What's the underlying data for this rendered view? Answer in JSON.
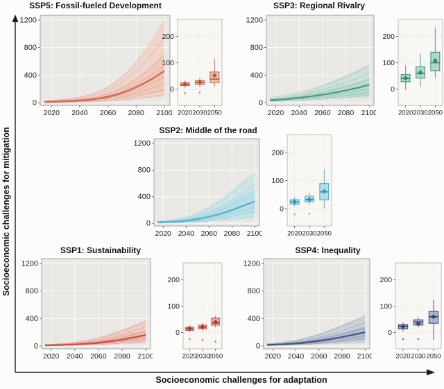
{
  "figure": {
    "y_axis_label": "Socioeconomic challenges for mitigation",
    "x_axis_label": "Socioeconomic challenges for adaptation"
  },
  "chart_data": [
    {
      "panel": "SSP5",
      "title": "SSP5: Fossil-fueled Development",
      "colors": {
        "stroke": "#cb6a56",
        "fill": "#f2bdab",
        "dark": "#ad4c3b"
      },
      "line": {
        "type": "line",
        "x": [
          2015,
          2030,
          2045,
          2060,
          2075,
          2090,
          2100
        ],
        "median": [
          10,
          20,
          40,
          85,
          180,
          330,
          460
        ],
        "outer_upper": [
          20,
          50,
          110,
          240,
          480,
          850,
          1200
        ],
        "outer_lower": [
          5,
          10,
          17,
          28,
          45,
          65,
          80
        ],
        "inner_upper": [
          14,
          30,
          65,
          145,
          290,
          510,
          700
        ],
        "inner_lower": [
          8,
          14,
          25,
          45,
          80,
          125,
          155
        ],
        "members": [
          1200,
          950,
          700,
          540,
          380,
          280,
          190,
          120
        ],
        "xticks": [
          2020,
          2040,
          2060,
          2080,
          2100
        ],
        "yticks": [
          0,
          400,
          800,
          1200
        ],
        "xlim": [
          2012,
          2104
        ],
        "ylim": [
          -40,
          1270
        ]
      },
      "box": {
        "type": "box",
        "categories": [
          "2020",
          "2030",
          "2050"
        ],
        "yticks": [
          0,
          100,
          200
        ],
        "ylim": [
          -62,
          265
        ],
        "boxes": [
          {
            "low": 5,
            "q1": 13,
            "median": 18,
            "q3": 25,
            "high": 32,
            "mean": 19,
            "outliers": [
              -15
            ]
          },
          {
            "low": 8,
            "q1": 18,
            "median": 25,
            "q3": 33,
            "high": 42,
            "mean": 27,
            "outliers": [
              -13
            ]
          },
          {
            "low": 10,
            "q1": 25,
            "median": 38,
            "q3": 65,
            "high": 115,
            "mean": 52,
            "outliers": []
          }
        ]
      }
    },
    {
      "panel": "SSP3",
      "title": "SSP3: Regional Rivalry",
      "colors": {
        "stroke": "#4e9c8b",
        "fill": "#a9d5c9",
        "dark": "#33796a"
      },
      "line": {
        "type": "line",
        "x": [
          2015,
          2030,
          2045,
          2060,
          2075,
          2090,
          2100
        ],
        "median": [
          35,
          55,
          80,
          115,
          160,
          215,
          260
        ],
        "outer_upper": [
          48,
          95,
          165,
          255,
          365,
          475,
          545
        ],
        "outer_lower": [
          25,
          33,
          42,
          52,
          60,
          68,
          72
        ],
        "inner_upper": [
          42,
          70,
          110,
          165,
          230,
          300,
          350
        ],
        "inner_lower": [
          28,
          40,
          55,
          70,
          85,
          100,
          110
        ],
        "members": [
          545,
          430,
          340,
          260,
          200,
          150,
          110
        ],
        "xticks": [
          2020,
          2040,
          2060,
          2080,
          2100
        ],
        "yticks": [
          0,
          400,
          800,
          1200
        ],
        "xlim": [
          2012,
          2104
        ],
        "ylim": [
          -40,
          1270
        ]
      },
      "box": {
        "type": "box",
        "categories": [
          "2020",
          "2030",
          "2050"
        ],
        "yticks": [
          0,
          100,
          200
        ],
        "ylim": [
          -62,
          265
        ],
        "boxes": [
          {
            "low": -2,
            "q1": 28,
            "median": 40,
            "q3": 55,
            "high": 90,
            "mean": 42,
            "outliers": []
          },
          {
            "low": 10,
            "q1": 42,
            "median": 60,
            "q3": 85,
            "high": 135,
            "mean": 63,
            "outliers": []
          },
          {
            "low": 42,
            "q1": 70,
            "median": 100,
            "q3": 140,
            "high": 235,
            "mean": 108,
            "outliers": []
          }
        ]
      }
    },
    {
      "panel": "SSP2",
      "title": "SSP2: Middle of the road",
      "colors": {
        "stroke": "#58b2c7",
        "fill": "#abdbe7",
        "dark": "#3d8ba0"
      },
      "line": {
        "type": "line",
        "x": [
          2015,
          2030,
          2045,
          2060,
          2075,
          2090,
          2100
        ],
        "median": [
          15,
          25,
          50,
          100,
          170,
          265,
          330
        ],
        "outer_upper": [
          25,
          60,
          130,
          260,
          440,
          640,
          750
        ],
        "outer_lower": [
          6,
          10,
          17,
          28,
          44,
          60,
          68
        ],
        "inner_upper": [
          20,
          42,
          85,
          170,
          290,
          430,
          510
        ],
        "inner_lower": [
          10,
          16,
          28,
          50,
          85,
          130,
          155
        ],
        "members": [
          750,
          580,
          450,
          330,
          250,
          170,
          110
        ],
        "xticks": [
          2020,
          2040,
          2060,
          2080,
          2100
        ],
        "yticks": [
          0,
          400,
          800,
          1200
        ],
        "xlim": [
          2012,
          2104
        ],
        "ylim": [
          -40,
          1270
        ]
      },
      "box": {
        "type": "box",
        "categories": [
          "2020",
          "2030",
          "2050"
        ],
        "yticks": [
          0,
          100,
          200
        ],
        "ylim": [
          -62,
          265
        ],
        "boxes": [
          {
            "low": 8,
            "q1": 16,
            "median": 24,
            "q3": 32,
            "high": 42,
            "mean": 24,
            "outliers": [
              -20
            ]
          },
          {
            "low": 14,
            "q1": 25,
            "median": 33,
            "q3": 45,
            "high": 58,
            "mean": 33,
            "outliers": [
              -18
            ]
          },
          {
            "low": 2,
            "q1": 32,
            "median": 60,
            "q3": 90,
            "high": 140,
            "mean": 62,
            "outliers": []
          }
        ]
      }
    },
    {
      "panel": "SSP1",
      "title": "SSP1: Sustainability",
      "colors": {
        "stroke": "#c4544a",
        "fill": "#efaba0",
        "dark": "#a03a31"
      },
      "line": {
        "type": "line",
        "x": [
          2015,
          2030,
          2045,
          2060,
          2075,
          2090,
          2100
        ],
        "median": [
          10,
          16,
          28,
          48,
          80,
          125,
          160
        ],
        "outer_upper": [
          18,
          38,
          72,
          130,
          210,
          300,
          370
        ],
        "outer_lower": [
          5,
          8,
          12,
          17,
          25,
          33,
          40
        ],
        "inner_upper": [
          14,
          25,
          45,
          80,
          130,
          190,
          230
        ],
        "inner_lower": [
          7,
          11,
          18,
          30,
          48,
          70,
          85
        ],
        "members": [
          370,
          280,
          215,
          160,
          115,
          75
        ],
        "xticks": [
          2020,
          2040,
          2060,
          2080,
          2100
        ],
        "yticks": [
          0,
          400,
          800,
          1200
        ],
        "xlim": [
          2012,
          2104
        ],
        "ylim": [
          -40,
          1270
        ]
      },
      "box": {
        "type": "box",
        "categories": [
          "2020",
          "2030",
          "2050"
        ],
        "yticks": [
          0,
          100,
          200
        ],
        "ylim": [
          -62,
          265
        ],
        "boxes": [
          {
            "low": 2,
            "q1": 8,
            "median": 14,
            "q3": 20,
            "high": 27,
            "mean": 15,
            "outliers": [
              -25
            ]
          },
          {
            "low": 6,
            "q1": 14,
            "median": 20,
            "q3": 28,
            "high": 36,
            "mean": 21,
            "outliers": [
              -28
            ]
          },
          {
            "low": 20,
            "q1": 28,
            "median": 36,
            "q3": 55,
            "high": 63,
            "mean": 40,
            "outliers": [
              -35
            ]
          }
        ]
      }
    },
    {
      "panel": "SSP4",
      "title": "SSP4: Inequality",
      "colors": {
        "stroke": "#49577e",
        "fill": "#a3b0cd",
        "dark": "#303e62"
      },
      "line": {
        "type": "line",
        "x": [
          2015,
          2030,
          2045,
          2060,
          2075,
          2090,
          2100
        ],
        "median": [
          15,
          27,
          45,
          75,
          115,
          165,
          200
        ],
        "outer_upper": [
          25,
          55,
          105,
          180,
          275,
          375,
          440
        ],
        "outer_lower": [
          7,
          11,
          17,
          24,
          31,
          37,
          42
        ],
        "inner_upper": [
          20,
          40,
          70,
          115,
          175,
          240,
          285
        ],
        "inner_lower": [
          10,
          16,
          26,
          40,
          60,
          82,
          100
        ],
        "members": [
          440,
          340,
          260,
          200,
          150,
          100
        ],
        "xticks": [
          2020,
          2040,
          2060,
          2080,
          2100
        ],
        "yticks": [
          0,
          400,
          800,
          1200
        ],
        "xlim": [
          2012,
          2104
        ],
        "ylim": [
          -40,
          1270
        ]
      },
      "box": {
        "type": "box",
        "categories": [
          "2020",
          "2030",
          "2050"
        ],
        "yticks": [
          0,
          100,
          200
        ],
        "ylim": [
          -62,
          265
        ],
        "boxes": [
          {
            "low": 5,
            "q1": 14,
            "median": 24,
            "q3": 30,
            "high": 38,
            "mean": 22,
            "outliers": [
              -25
            ]
          },
          {
            "low": 20,
            "q1": 28,
            "median": 40,
            "q3": 48,
            "high": 56,
            "mean": 34,
            "outliers": [
              -25
            ]
          },
          {
            "low": -28,
            "q1": 35,
            "median": 60,
            "q3": 80,
            "high": 125,
            "mean": 60,
            "outliers": []
          }
        ]
      }
    }
  ]
}
